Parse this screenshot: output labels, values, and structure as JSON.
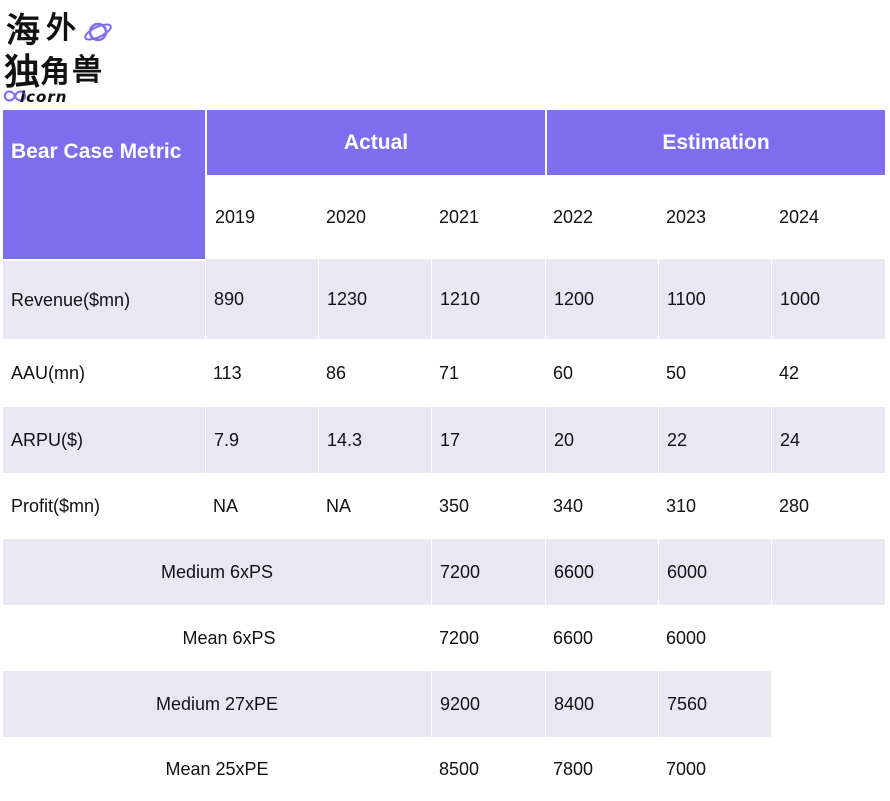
{
  "logo": {
    "chars": [
      "海",
      "外",
      "独",
      "角",
      "兽"
    ],
    "text": "icorn"
  },
  "table": {
    "metric_header": "Bear Case Metric",
    "actual_header": "Actual",
    "estimation_header": "Estimation",
    "years": [
      "2019",
      "2020",
      "2021",
      "2022",
      "2023",
      "2024"
    ],
    "rows": [
      {
        "label": "Revenue($mn)",
        "values": [
          "890",
          "1230",
          "1210",
          "1200",
          "1100",
          "1000"
        ]
      },
      {
        "label": "AAU(mn)",
        "values": [
          "113",
          "86",
          "71",
          "60",
          "50",
          "42"
        ]
      },
      {
        "label": "ARPU($)",
        "values": [
          "7.9",
          "14.3",
          "17",
          "20",
          "22",
          "24"
        ]
      },
      {
        "label": "Profit($mn)",
        "values": [
          "NA",
          "NA",
          "350",
          "340",
          "310",
          "280"
        ]
      }
    ],
    "valuations": [
      {
        "label": "Medium 6xPS",
        "values": [
          "7200",
          "6600",
          "6000"
        ]
      },
      {
        "label": "Mean 6xPS",
        "values": [
          "7200",
          "6600",
          "6000"
        ]
      },
      {
        "label": "Medium 27xPE",
        "values": [
          "9200",
          "8400",
          "7560"
        ]
      },
      {
        "label": "Mean 25xPE",
        "values": [
          "8500",
          "7800",
          "7000"
        ]
      }
    ]
  }
}
